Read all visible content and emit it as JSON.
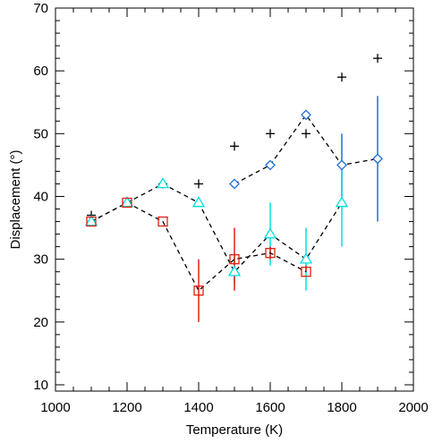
{
  "chart_data": {
    "type": "scatter",
    "title": "",
    "xlabel": "Temperature (K)",
    "ylabel": "Displacement (°)",
    "xlim": [
      1000,
      2000
    ],
    "ylim": [
      9,
      70
    ],
    "xticks": [
      1000,
      1200,
      1400,
      1600,
      1800,
      2000
    ],
    "yticks": [
      10,
      20,
      30,
      40,
      50,
      60,
      70
    ],
    "grid": false,
    "legend": "none",
    "series": [
      {
        "marker": "plus",
        "color": "#000000",
        "line": "none",
        "x": [
          1100,
          1200,
          1300,
          1400,
          1500,
          1600,
          1700,
          1800,
          1900
        ],
        "y": [
          37,
          39,
          42,
          42,
          48,
          50,
          50,
          59,
          62
        ]
      },
      {
        "marker": "diamond",
        "color": "#1f6fd6",
        "line": "dashed",
        "x": [
          1500,
          1600,
          1700,
          1800,
          1900
        ],
        "y": [
          42,
          45,
          53,
          45,
          46
        ],
        "err_low": [
          42,
          45,
          53,
          40,
          36
        ],
        "err_high": [
          42,
          45,
          53,
          50,
          56
        ]
      },
      {
        "marker": "triangle",
        "color": "#00e0e0",
        "line": "dashed",
        "x": [
          1100,
          1200,
          1300,
          1400,
          1500,
          1600,
          1700,
          1800
        ],
        "y": [
          36,
          39,
          42,
          39,
          28,
          34,
          30,
          39
        ],
        "err_low": [
          36,
          39,
          42,
          39,
          26,
          29,
          25,
          32
        ],
        "err_high": [
          36,
          39,
          42,
          39,
          31,
          39,
          35,
          45
        ]
      },
      {
        "marker": "square",
        "color": "#e02010",
        "line": "dashed",
        "x": [
          1100,
          1200,
          1300,
          1400,
          1500,
          1600,
          1700
        ],
        "y": [
          36,
          39,
          36,
          25,
          30,
          31,
          28
        ],
        "err_low": [
          36,
          39,
          36,
          20,
          25,
          30,
          28
        ],
        "err_high": [
          36,
          39,
          36,
          30,
          35,
          32,
          29
        ]
      }
    ]
  }
}
